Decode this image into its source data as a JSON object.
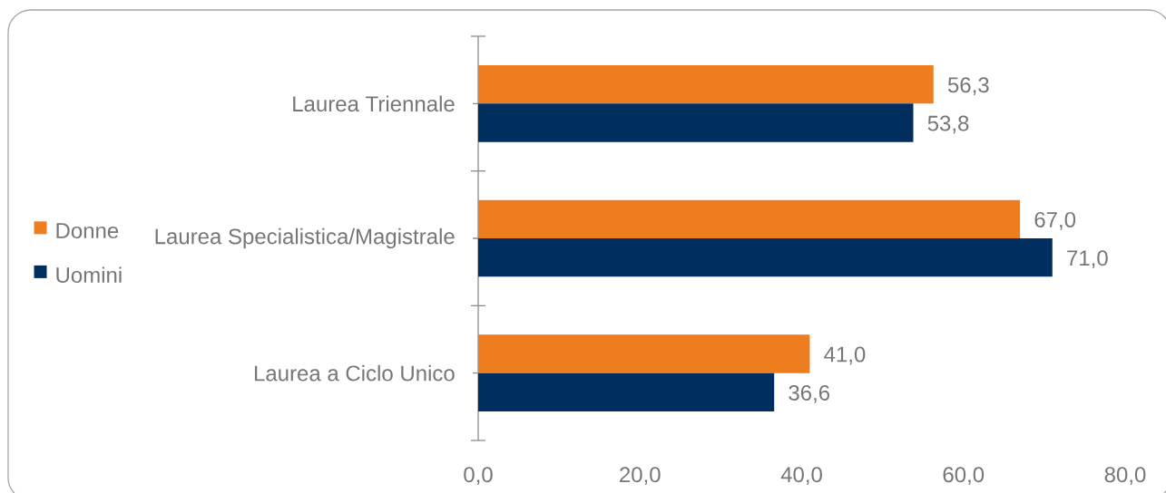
{
  "chart_data": {
    "type": "bar",
    "orientation": "horizontal",
    "categories": [
      "Laurea Triennale",
      "Laurea Specialistica/Magistrale",
      "Laurea a Ciclo Unico"
    ],
    "series": [
      {
        "name": "Donne",
        "color": "#ee7d1f",
        "values": [
          56.3,
          67.0,
          41.0
        ],
        "value_labels": [
          "56,3",
          "67,0",
          "41,0"
        ]
      },
      {
        "name": "Uomini",
        "color": "#002e5f",
        "values": [
          53.8,
          71.0,
          36.6
        ],
        "value_labels": [
          "53,8",
          "71,0",
          "36,6"
        ]
      }
    ],
    "xlim": [
      0,
      80
    ],
    "xticks": [
      {
        "value": 0,
        "label": "0,0"
      },
      {
        "value": 20,
        "label": "20,0"
      },
      {
        "value": 40,
        "label": "40,0"
      },
      {
        "value": 60,
        "label": "60,0"
      },
      {
        "value": 80,
        "label": "80,0"
      }
    ],
    "legend": "left"
  }
}
